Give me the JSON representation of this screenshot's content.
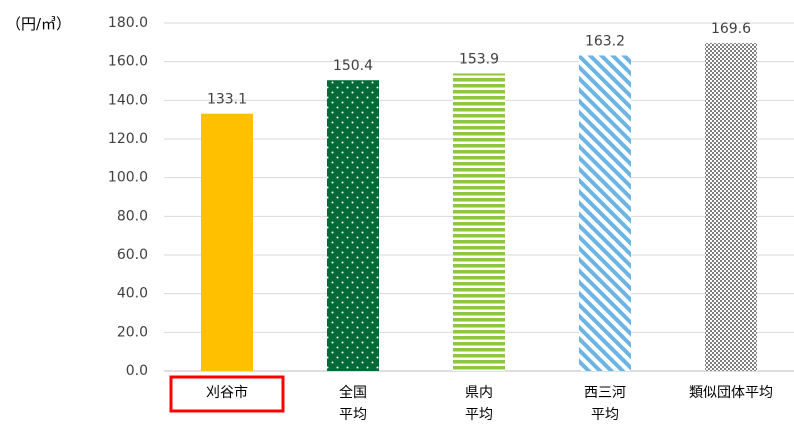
{
  "chart_data": {
    "type": "bar",
    "unit_label": "（円/㎥）",
    "categories": [
      [
        "刈谷市"
      ],
      [
        "全国",
        "平均"
      ],
      [
        "県内",
        "平均"
      ],
      [
        "西三河",
        "平均"
      ],
      [
        "類似団体平均"
      ]
    ],
    "values": [
      133.1,
      150.4,
      153.9,
      163.2,
      169.6
    ],
    "colors": [
      "#ffc000",
      "#006a36",
      "#8dc63f",
      "#6cb4e4",
      "#7f7f7f"
    ],
    "patterns": [
      "solid",
      "dots",
      "horizontal-stripes",
      "diagonal-stripes",
      "checker"
    ],
    "highlight": 0,
    "highlight_color": "#ff0000",
    "ylim": [
      0,
      180
    ],
    "yticks": [
      {
        "value": 0,
        "label": "0.0"
      },
      {
        "value": 20,
        "label": "20.0"
      },
      {
        "value": 40,
        "label": "40.0"
      },
      {
        "value": 60,
        "label": "60.0"
      },
      {
        "value": 80,
        "label": "80.0"
      },
      {
        "value": 100,
        "label": "100.0"
      },
      {
        "value": 120,
        "label": "120.0"
      },
      {
        "value": 140,
        "label": "140.0"
      },
      {
        "value": 160,
        "label": "160.0"
      },
      {
        "value": 180,
        "label": "180.0"
      }
    ],
    "grid": true
  }
}
